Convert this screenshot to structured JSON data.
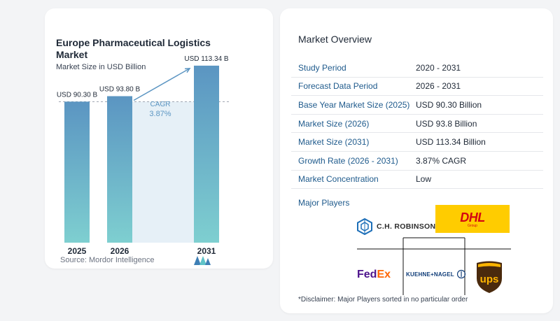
{
  "chart_data": {
    "type": "bar",
    "title": "Europe Pharmaceutical Logistics Market",
    "subtitle": "Market Size in USD Billion",
    "categories": [
      "2025",
      "2026",
      "2031"
    ],
    "values": [
      90.3,
      93.8,
      113.34
    ],
    "data_labels": [
      "USD 90.30 B",
      "USD 93.80 B",
      "USD 113.34 B"
    ],
    "cagr_label": "CAGR",
    "cagr_value": "3.87%",
    "ylim": [
      0,
      120
    ],
    "colors": {
      "bar_top": "#5b95c2",
      "bar_bottom": "#7ecfd0",
      "band": "#e6f0f7",
      "arrow": "#5b95c2"
    }
  },
  "source": "Source:  Mordor Intelligence",
  "overview": {
    "title": "Market Overview",
    "rows": [
      {
        "label": "Study Period",
        "value": "2020 - 2031"
      },
      {
        "label": "Forecast Data Period",
        "value": "2026 - 2031"
      },
      {
        "label": "Base Year Market Size (2025)",
        "value": "USD 90.30 Billion"
      },
      {
        "label": "Market Size (2026)",
        "value": "USD 93.8 Billion"
      },
      {
        "label": "Market Size (2031)",
        "value": "USD 113.34 Billion"
      },
      {
        "label": "Growth Rate (2026 - 2031)",
        "value": "3.87% CAGR"
      },
      {
        "label": "Market Concentration",
        "value": "Low"
      }
    ],
    "players_label": "Major Players",
    "players": {
      "chr": "C.H. ROBINSON",
      "dhl": "DHL",
      "dhl_sub": "Group",
      "fedex_a": "Fed",
      "fedex_b": "Ex",
      "kn": "KUEHNE+NAGEL",
      "ups": "ups"
    },
    "disclaimer": "*Disclaimer: Major Players sorted in no particular order"
  }
}
